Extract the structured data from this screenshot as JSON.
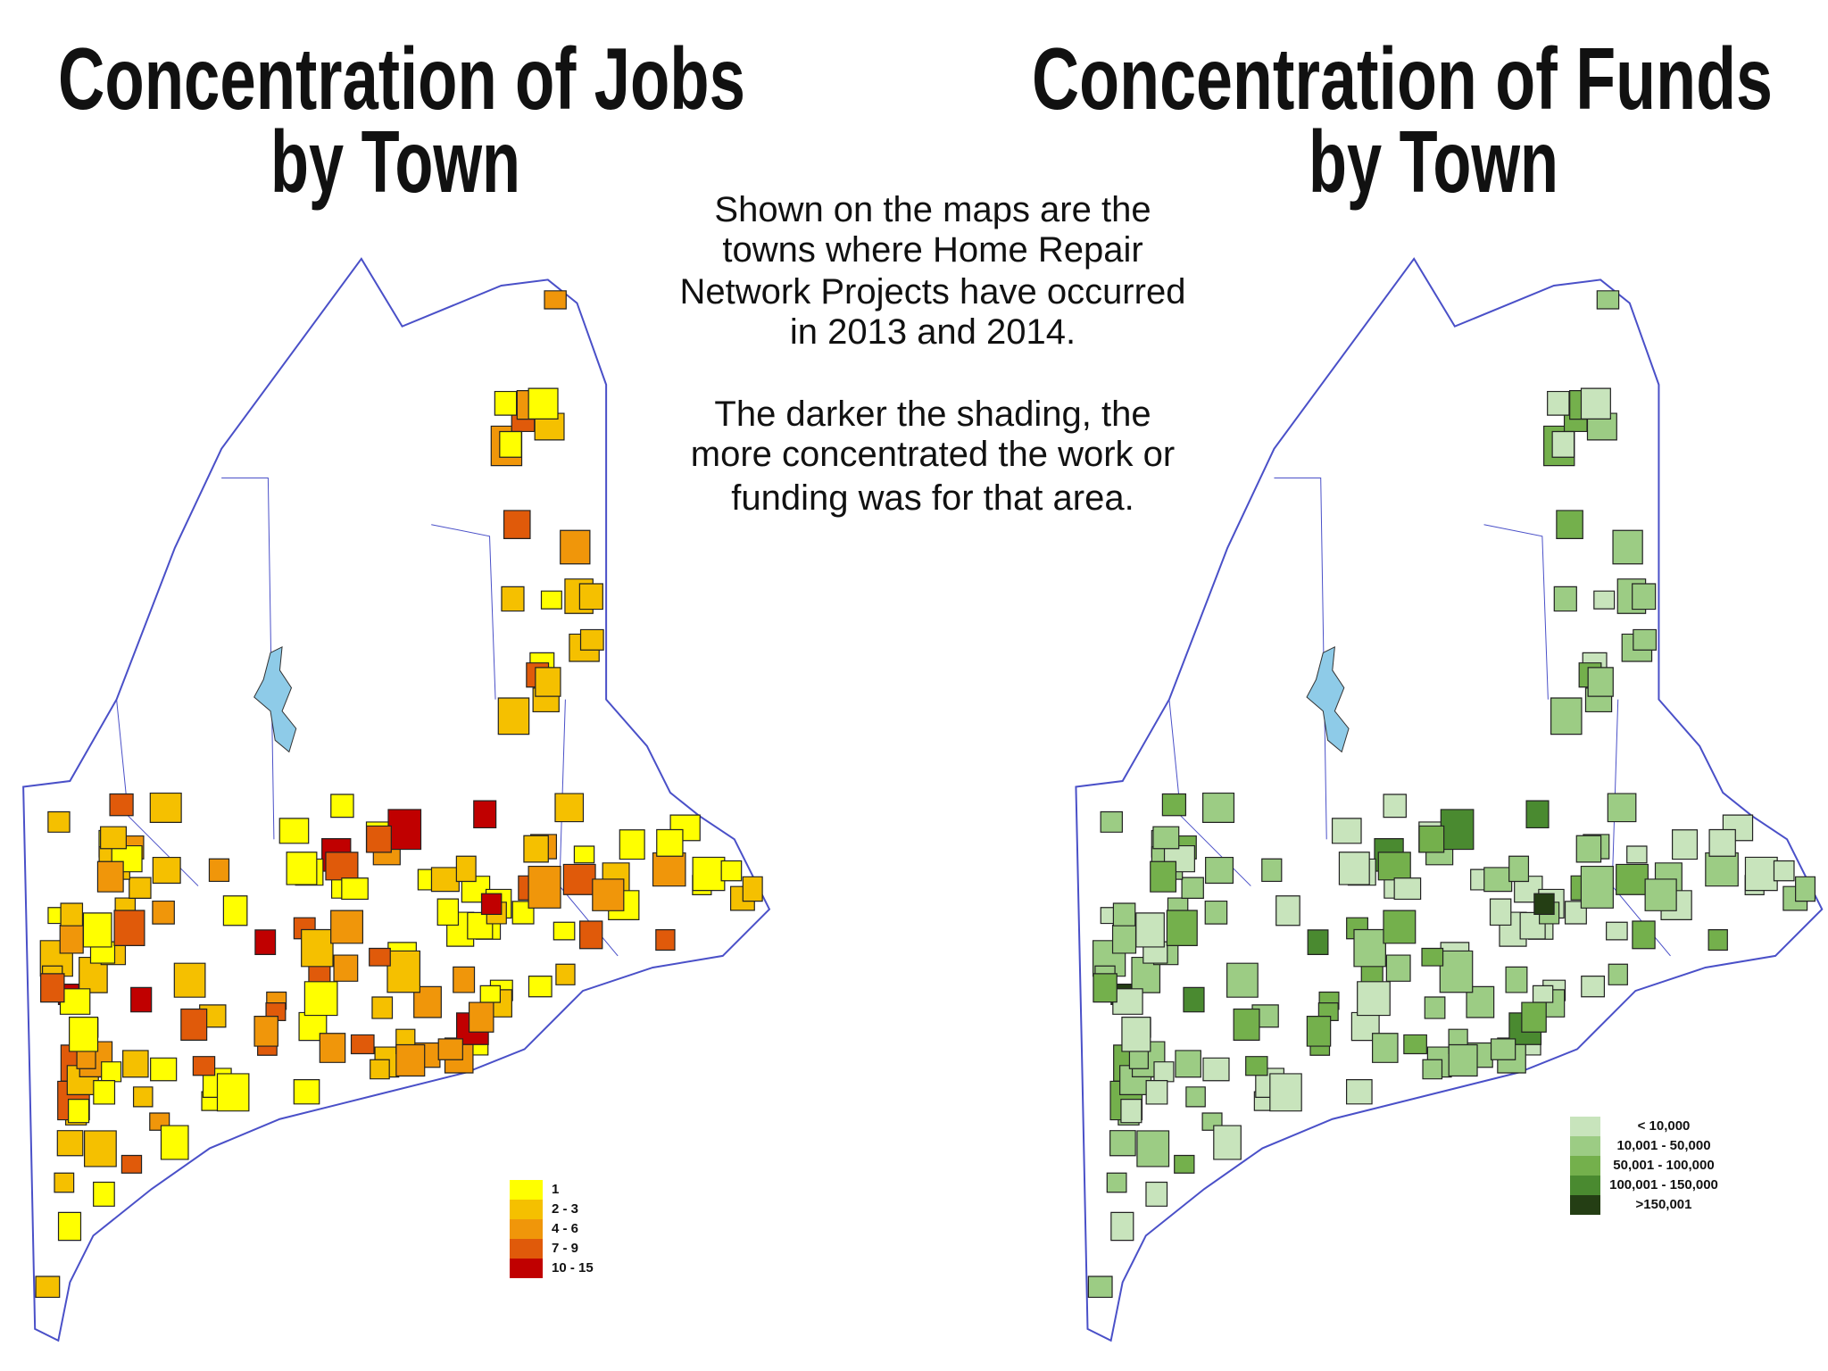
{
  "left_map": {
    "title_lines": [
      "Concentration of Jobs",
      "by Town"
    ],
    "legend": [
      {
        "label": "1",
        "color": "#ffff00"
      },
      {
        "label": "2 - 3",
        "color": "#f5c000"
      },
      {
        "label": "4 - 6",
        "color": "#f0960a"
      },
      {
        "label": "7 - 9",
        "color": "#e05a0a"
      },
      {
        "label": "10 - 15",
        "color": "#c00000"
      }
    ]
  },
  "right_map": {
    "title_lines": [
      "Concentration of Funds",
      "by Town"
    ],
    "legend": [
      {
        "label": "< 10,000",
        "color": "#c8e4bc"
      },
      {
        "label": "10,001 - 50,000",
        "color": "#9ccc84"
      },
      {
        "label": "50,001 - 100,000",
        "color": "#74b04c"
      },
      {
        "label": "100,001 - 150,000",
        "color": "#4a8a30"
      },
      {
        "label": ">150,001",
        "color": "#243e14"
      }
    ]
  },
  "description": {
    "paragraphs": [
      [
        "Shown on the maps are the",
        "towns where Home Repair",
        "Network Projects have occurred",
        "in 2013 and 2014."
      ],
      [
        "The darker the shading, the",
        "more concentrated the work or",
        "funding was for that area."
      ]
    ]
  }
}
